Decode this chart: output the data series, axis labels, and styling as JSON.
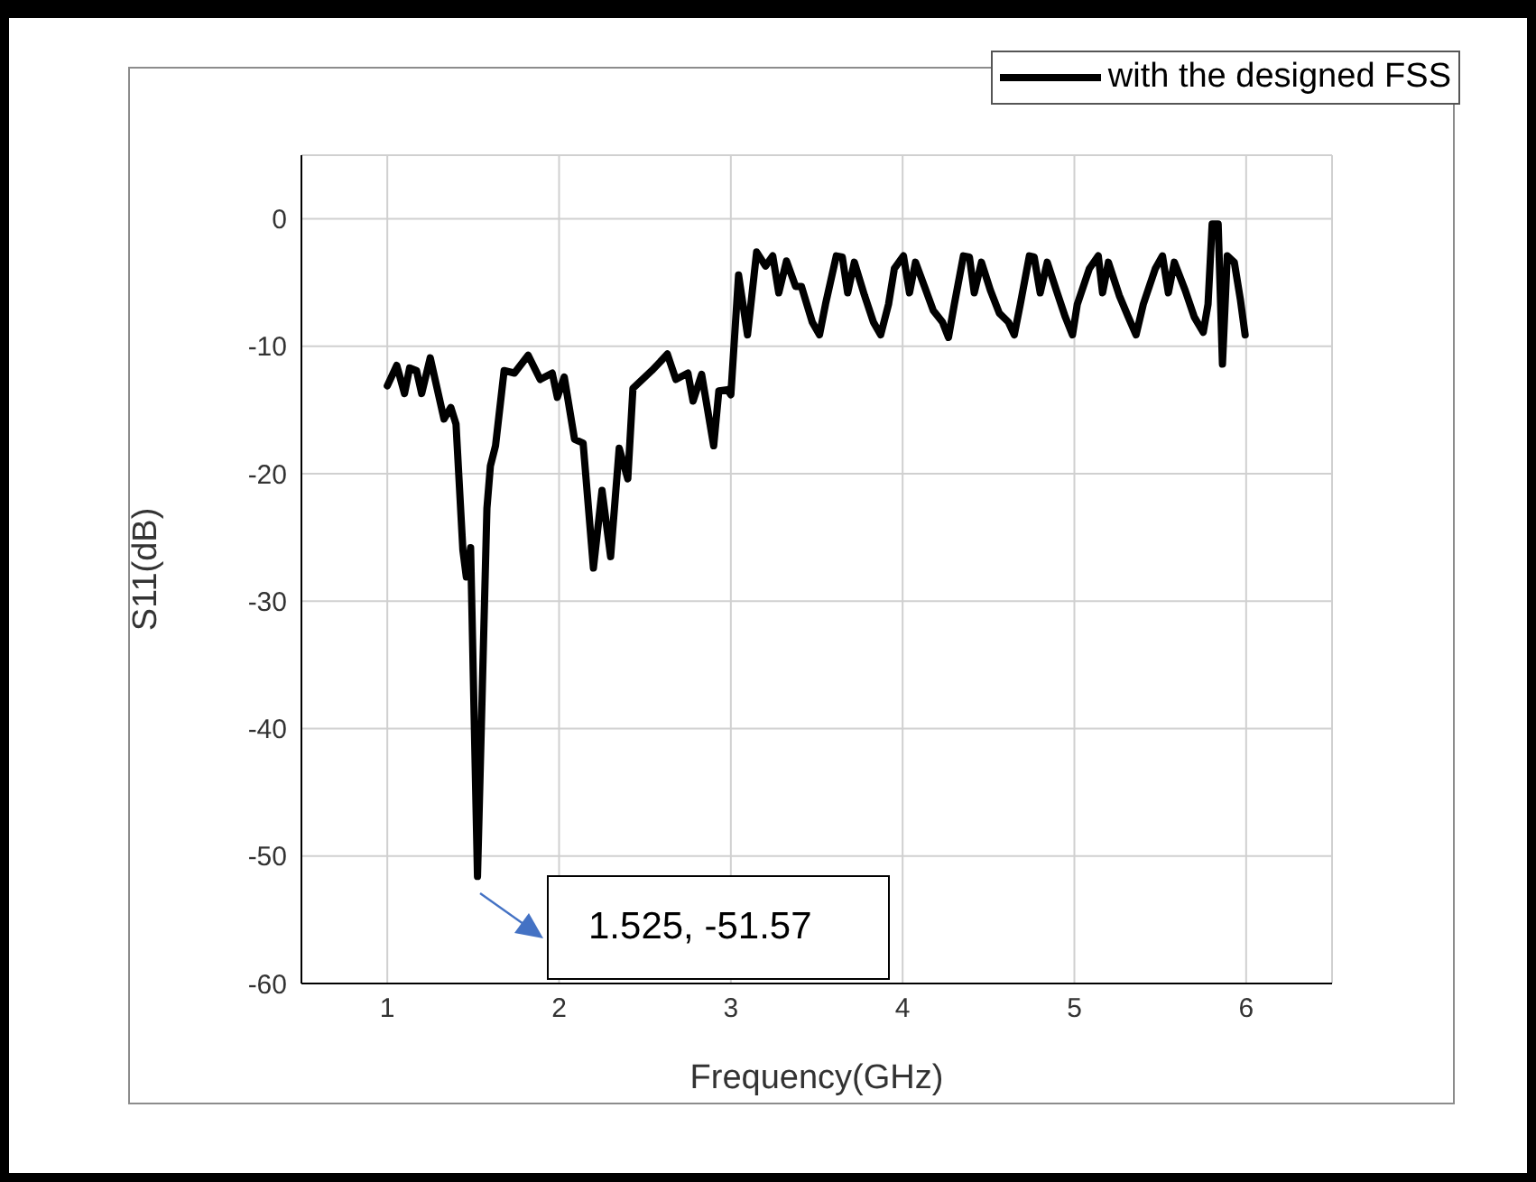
{
  "chart_data": {
    "type": "line",
    "xlabel": "Frequency(GHz)",
    "ylabel": "S11(dB)",
    "xlim": [
      0.5,
      6.5
    ],
    "xticks": [
      1,
      2,
      3,
      4,
      5,
      6
    ],
    "ylim": [
      -60,
      5
    ],
    "yticks": [
      -60,
      -50,
      -40,
      -30,
      -20,
      -10,
      0
    ],
    "grid": true,
    "legend": "top right",
    "marker": "none",
    "line_style": "solid",
    "annotations": [
      "1.525, -51.57"
    ],
    "series": [
      {
        "name": "with the designed FSS",
        "color": "#000000",
        "x": [
          1.0,
          1.055,
          1.1,
          1.13,
          1.17,
          1.2,
          1.25,
          1.33,
          1.37,
          1.4,
          1.44,
          1.46,
          1.485,
          1.525,
          1.58,
          1.6,
          1.63,
          1.68,
          1.74,
          1.82,
          1.89,
          1.96,
          1.99,
          2.03,
          2.09,
          2.14,
          2.2,
          2.25,
          2.3,
          2.35,
          2.4,
          2.43,
          2.54,
          2.59,
          2.63,
          2.68,
          2.75,
          2.78,
          2.83,
          2.9,
          2.93,
          2.98,
          3.0,
          3.045,
          3.097,
          3.15,
          3.202,
          3.244,
          3.279,
          3.324,
          3.377,
          3.411,
          3.474,
          3.516,
          3.551,
          3.614,
          3.649,
          3.68,
          3.719,
          3.778,
          3.83,
          3.872,
          3.918,
          3.952,
          4.005,
          4.04,
          4.075,
          4.127,
          4.179,
          4.232,
          4.267,
          4.301,
          4.354,
          4.389,
          4.417,
          4.459,
          4.511,
          4.563,
          4.616,
          4.65,
          4.685,
          4.738,
          4.766,
          4.801,
          4.842,
          4.895,
          4.947,
          4.989,
          5.017,
          5.087,
          5.139,
          5.164,
          5.198,
          5.261,
          5.314,
          5.359,
          5.401,
          5.471,
          5.513,
          5.547,
          5.582,
          5.645,
          5.698,
          5.75,
          5.778,
          5.802,
          5.837,
          5.862,
          5.89,
          5.931,
          5.966,
          5.994
        ],
        "values": [
          -13.1,
          -11.5,
          -13.7,
          -11.7,
          -11.9,
          -13.7,
          -10.9,
          -15.7,
          -14.8,
          -16.1,
          -26.0,
          -28.1,
          -25.8,
          -51.6,
          -22.7,
          -19.4,
          -17.8,
          -11.9,
          -12.1,
          -10.7,
          -12.6,
          -12.1,
          -14.0,
          -12.4,
          -17.3,
          -17.6,
          -27.4,
          -21.3,
          -26.5,
          -18.0,
          -20.4,
          -13.3,
          -11.9,
          -11.2,
          -10.6,
          -12.6,
          -12.1,
          -14.3,
          -12.2,
          -17.8,
          -13.5,
          -13.4,
          -13.8,
          -4.4,
          -9.1,
          -2.6,
          -3.7,
          -2.9,
          -5.8,
          -3.3,
          -5.3,
          -5.3,
          -8.1,
          -9.1,
          -6.7,
          -2.9,
          -3.0,
          -5.8,
          -3.4,
          -6.0,
          -8.1,
          -9.1,
          -6.7,
          -3.9,
          -2.9,
          -5.8,
          -3.4,
          -5.3,
          -7.2,
          -8.1,
          -9.3,
          -6.7,
          -2.9,
          -3.0,
          -5.8,
          -3.4,
          -5.6,
          -7.4,
          -8.1,
          -9.1,
          -6.7,
          -2.9,
          -3.0,
          -5.8,
          -3.4,
          -5.6,
          -7.7,
          -9.1,
          -6.7,
          -3.9,
          -2.9,
          -5.8,
          -3.4,
          -6.0,
          -7.7,
          -9.1,
          -6.7,
          -3.9,
          -2.9,
          -5.8,
          -3.4,
          -5.6,
          -7.7,
          -8.9,
          -6.7,
          -0.4,
          -0.4,
          -11.4,
          -2.9,
          -3.4,
          -6.3,
          -9.1
        ]
      }
    ]
  }
}
